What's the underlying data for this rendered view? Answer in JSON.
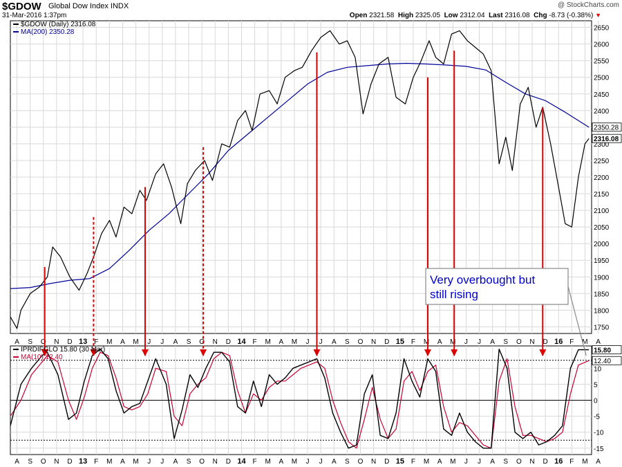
{
  "header": {
    "symbol": "$GDOW",
    "name": "Global Dow Index",
    "exchange": "INDX",
    "date": "31-Mar-2016 1:37pm",
    "open_label": "Open",
    "open": "2321.58",
    "high_label": "High",
    "high": "2325.05",
    "low_label": "Low",
    "low": "2312.04",
    "last_label": "Last",
    "last": "2316.08",
    "chg_label": "Chg",
    "chg": "-8.73 (-0.38%)",
    "logo": "@ StockCharts.com"
  },
  "colors": {
    "price": "#000000",
    "ma200": "#000099",
    "signal": "#dd0000",
    "osc": "#000000",
    "osc_ma": "#cc0033",
    "grid": "#d8d8d8",
    "annotation_border": "#888888",
    "annotation_text": "#0000cc"
  },
  "chart_data": [
    {
      "type": "line",
      "panel": "price",
      "legend": [
        {
          "label": "$GDOW (Daily) 2316.08",
          "color": "#000000"
        },
        {
          "label": "MA(200) 2350.28",
          "color": "#000099"
        }
      ],
      "ylim": [
        1730,
        2670
      ],
      "y_ticks": [
        1750,
        1800,
        1850,
        1900,
        1950,
        2000,
        2050,
        2100,
        2150,
        2200,
        2250,
        2300,
        2350,
        2400,
        2450,
        2500,
        2550,
        2600,
        2650
      ],
      "value_labels": [
        {
          "text": "2350.28",
          "value": 2350.28,
          "bold": false
        },
        {
          "text": "2316.08",
          "value": 2316.08,
          "bold": true
        }
      ],
      "x_range": [
        0,
        44
      ],
      "series": [
        {
          "name": "$GDOW (Daily)",
          "x": [
            0,
            0.5,
            0.8,
            1.5,
            2.2,
            2.8,
            3.2,
            3.8,
            4.5,
            5.2,
            5.8,
            6.3,
            6.9,
            7.5,
            8,
            8.6,
            9.2,
            9.8,
            10.3,
            11,
            11.6,
            12.2,
            12.9,
            13.4,
            14,
            14.7,
            15.3,
            16,
            16.6,
            17.2,
            17.8,
            18.3,
            18.9,
            19.6,
            20.2,
            20.8,
            21.5,
            22.1,
            22.8,
            23.5,
            24.2,
            24.9,
            25.5,
            26.1,
            26.7,
            27.3,
            27.9,
            28.6,
            29.2,
            29.9,
            30.5,
            31.1,
            31.7,
            32.2,
            32.8,
            33.4,
            34,
            34.6,
            35.2,
            35.8,
            36.4,
            37,
            37.5,
            38,
            38.6,
            39.2,
            39.8,
            40.3,
            40.9,
            41.5,
            42,
            42.5,
            43,
            43.5,
            43.8
          ],
          "values": [
            1780,
            1745,
            1800,
            1850,
            1870,
            1900,
            1990,
            1960,
            1900,
            1860,
            1910,
            1960,
            2030,
            2070,
            2020,
            2110,
            2090,
            2160,
            2130,
            2210,
            2240,
            2170,
            2060,
            2180,
            2220,
            2250,
            2190,
            2300,
            2290,
            2370,
            2400,
            2340,
            2450,
            2460,
            2420,
            2500,
            2520,
            2530,
            2580,
            2620,
            2640,
            2600,
            2610,
            2560,
            2390,
            2480,
            2540,
            2560,
            2440,
            2420,
            2500,
            2550,
            2610,
            2560,
            2540,
            2630,
            2640,
            2610,
            2590,
            2570,
            2520,
            2240,
            2320,
            2220,
            2420,
            2470,
            2350,
            2410,
            2300,
            2170,
            2060,
            2050,
            2200,
            2300,
            2316
          ]
        },
        {
          "name": "MA(200)",
          "x": [
            0,
            1.5,
            3,
            4.5,
            6,
            7.5,
            9,
            10.5,
            12,
            13.5,
            15,
            16.5,
            18,
            19.5,
            21,
            22.5,
            24,
            25.5,
            27,
            28.5,
            30,
            31.5,
            33,
            34.5,
            36,
            37.5,
            39,
            40.5,
            42,
            43.8
          ],
          "values": [
            1865,
            1868,
            1880,
            1890,
            1895,
            1925,
            1980,
            2040,
            2090,
            2150,
            2210,
            2280,
            2330,
            2380,
            2430,
            2480,
            2515,
            2530,
            2535,
            2540,
            2542,
            2540,
            2537,
            2533,
            2522,
            2485,
            2450,
            2430,
            2395,
            2350
          ]
        }
      ],
      "signals": [
        {
          "x": 2.6,
          "y_top": 1930,
          "style": "solid"
        },
        {
          "x": 6.3,
          "y_top": 2080,
          "style": "dashed"
        },
        {
          "x": 10.2,
          "y_top": 2170,
          "style": "solid"
        },
        {
          "x": 14.6,
          "y_top": 2290,
          "style": "dashed"
        },
        {
          "x": 23.2,
          "y_top": 2575,
          "style": "solid"
        },
        {
          "x": 31.6,
          "y_top": 2500,
          "style": "solid"
        },
        {
          "x": 33.6,
          "y_top": 2580,
          "style": "solid"
        },
        {
          "x": 40.3,
          "y_top": 2410,
          "style": "solid"
        }
      ],
      "annotation": {
        "lines": [
          "Very overbought but",
          "still rising"
        ]
      }
    },
    {
      "type": "line",
      "panel": "oscillator",
      "legend": [
        {
          "label": "IPRDIFGLO 15.80 (30 Mar)",
          "color": "#000000"
        },
        {
          "label": "MA(10) 12.40",
          "color": "#cc0033"
        }
      ],
      "ylim": [
        -17,
        17
      ],
      "y_ticks": [
        -15,
        -10,
        -5,
        0,
        5,
        10
      ],
      "ref_lines": [
        12.5,
        0,
        -12.5
      ],
      "value_labels": [
        {
          "text": "15.80",
          "value": 15.8,
          "bold": true
        },
        {
          "text": "12.40",
          "value": 12.4,
          "bold": false
        }
      ],
      "series": [
        {
          "name": "IPRDIFGLO",
          "x": [
            0,
            0.8,
            1.6,
            2.4,
            2.8,
            3.6,
            4.4,
            5,
            5.6,
            6.2,
            6.8,
            7.4,
            8,
            8.6,
            9.2,
            9.8,
            10.4,
            11,
            11.8,
            12.4,
            13,
            13.6,
            14.2,
            14.8,
            15.4,
            16,
            16.6,
            17.2,
            17.8,
            18.4,
            19,
            19.6,
            20.2,
            20.8,
            21.4,
            22,
            22.6,
            23.2,
            23.8,
            24.4,
            25,
            25.6,
            26.2,
            26.8,
            27.4,
            28,
            28.6,
            29.2,
            29.8,
            30.4,
            31,
            31.6,
            32.2,
            32.8,
            33.4,
            34,
            34.6,
            35.2,
            35.8,
            36.4,
            37,
            37.6,
            38.2,
            38.8,
            39.4,
            40,
            40.6,
            41.2,
            41.8,
            42.4,
            43,
            43.8
          ],
          "values": [
            -8,
            5,
            10,
            14,
            15,
            8,
            -6,
            -4,
            6,
            14,
            16,
            13,
            3,
            -4,
            -2,
            -1,
            6,
            13,
            5,
            -12,
            -3,
            8,
            4,
            10,
            15,
            15,
            12,
            -2,
            -4,
            6,
            -2,
            8,
            5,
            7,
            10,
            11,
            12,
            13,
            7,
            -4,
            -10,
            -15,
            -14,
            2,
            8,
            -11,
            -12,
            -4,
            13,
            6,
            1,
            13,
            9,
            -9,
            -11,
            -4,
            -10,
            -13,
            -15,
            -15,
            16,
            10,
            -10,
            -12,
            -10,
            -14,
            -13,
            -11,
            -8,
            10,
            15.8,
            15.8
          ],
          "color": "#000000"
        },
        {
          "name": "MA(10)",
          "x": [
            0,
            0.8,
            1.6,
            2.4,
            2.8,
            3.6,
            4.4,
            5,
            5.6,
            6.2,
            6.8,
            7.4,
            8,
            8.6,
            9.2,
            9.8,
            10.4,
            11,
            11.8,
            12.4,
            13,
            13.6,
            14.2,
            14.8,
            15.4,
            16,
            16.6,
            17.2,
            17.8,
            18.4,
            19,
            19.6,
            20.2,
            20.8,
            21.4,
            22,
            22.6,
            23.2,
            23.8,
            24.4,
            25,
            25.6,
            26.2,
            26.8,
            27.4,
            28,
            28.6,
            29.2,
            29.8,
            30.4,
            31,
            31.6,
            32.2,
            32.8,
            33.4,
            34,
            34.6,
            35.2,
            35.8,
            36.4,
            37,
            37.6,
            38.2,
            38.8,
            39.4,
            40,
            40.6,
            41.2,
            41.8,
            42.4,
            43,
            43.8
          ],
          "values": [
            -5,
            0,
            8,
            12,
            14,
            12,
            0,
            -6,
            1,
            10,
            15,
            14,
            7,
            -2,
            -3,
            -2,
            2,
            10,
            9,
            -5,
            -8,
            2,
            5,
            7,
            13,
            15,
            14,
            3,
            -4,
            2,
            0,
            4,
            6,
            6,
            8,
            10,
            11,
            12,
            10,
            0,
            -7,
            -13,
            -15,
            -6,
            4,
            -6,
            -12,
            -9,
            6,
            9,
            3,
            9,
            11,
            -2,
            -10,
            -7,
            -8,
            -11,
            -14,
            -15,
            6,
            13,
            -2,
            -11,
            -11,
            -12,
            -13,
            -12,
            -10,
            2,
            11,
            12.4
          ],
          "color": "#cc0033"
        }
      ]
    }
  ],
  "x_axis": {
    "top": [
      "A",
      "S",
      "O",
      "N",
      "D",
      "13",
      "F",
      "M",
      "A",
      "M",
      "J",
      "J",
      "A",
      "S",
      "O",
      "N",
      "D",
      "14",
      "F",
      "M",
      "A",
      "M",
      "J",
      "J",
      "A",
      "S",
      "O",
      "N",
      "D",
      "15",
      "F",
      "M",
      "A",
      "M",
      "J",
      "J",
      "A",
      "S",
      "O",
      "N",
      "D",
      "16",
      "F",
      "M",
      "A"
    ],
    "bottom": [
      "A",
      "S",
      "O",
      "N",
      "D",
      "13",
      "F",
      "M",
      "A",
      "M",
      "J",
      "J",
      "A",
      "S",
      "O",
      "N",
      "D",
      "14",
      "F",
      "M",
      "A",
      "M",
      "J",
      "J",
      "A",
      "S",
      "O",
      "N",
      "D",
      "15",
      "F",
      "M",
      "A",
      "M",
      "J",
      "J",
      "A",
      "S",
      "O",
      "N",
      "D",
      "16",
      "F",
      "M",
      "A"
    ],
    "bold": [
      "13",
      "14",
      "15",
      "16"
    ]
  }
}
